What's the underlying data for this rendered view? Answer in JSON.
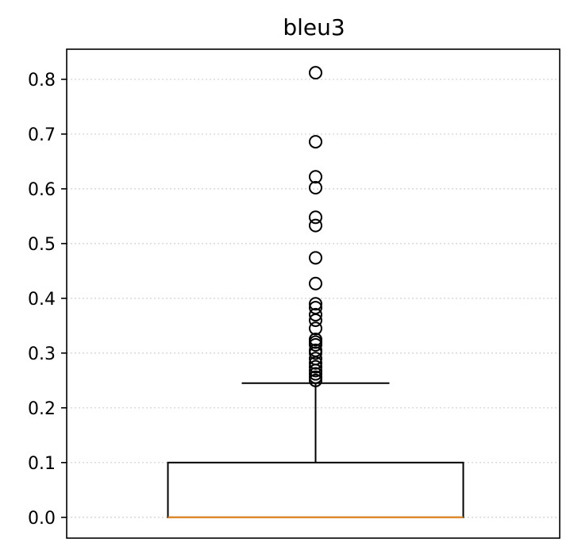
{
  "chart_data": {
    "type": "box",
    "title": "bleu3",
    "xlabel": "",
    "ylabel": "",
    "ylim": [
      -0.038,
      0.855
    ],
    "yticks": [
      0.0,
      0.1,
      0.2,
      0.3,
      0.4,
      0.5,
      0.6,
      0.7,
      0.8
    ],
    "ytick_labels": [
      "0.0",
      "0.1",
      "0.2",
      "0.3",
      "0.4",
      "0.5",
      "0.6",
      "0.7",
      "0.8"
    ],
    "grid": "y-dotted",
    "box": {
      "q1": 0.0,
      "median": 0.0,
      "q3": 0.1,
      "whisker_low": 0.0,
      "whisker_high": 0.245
    },
    "outliers": [
      0.812,
      0.686,
      0.622,
      0.602,
      0.548,
      0.533,
      0.474,
      0.427,
      0.39,
      0.383,
      0.37,
      0.36,
      0.345,
      0.325,
      0.32,
      0.315,
      0.305,
      0.3,
      0.29,
      0.282,
      0.275,
      0.268,
      0.262,
      0.256,
      0.25
    ],
    "colors": {
      "box": "#000000",
      "median": "#e08a2b",
      "grid": "#d0d0d0",
      "outlier": "#000000"
    }
  }
}
